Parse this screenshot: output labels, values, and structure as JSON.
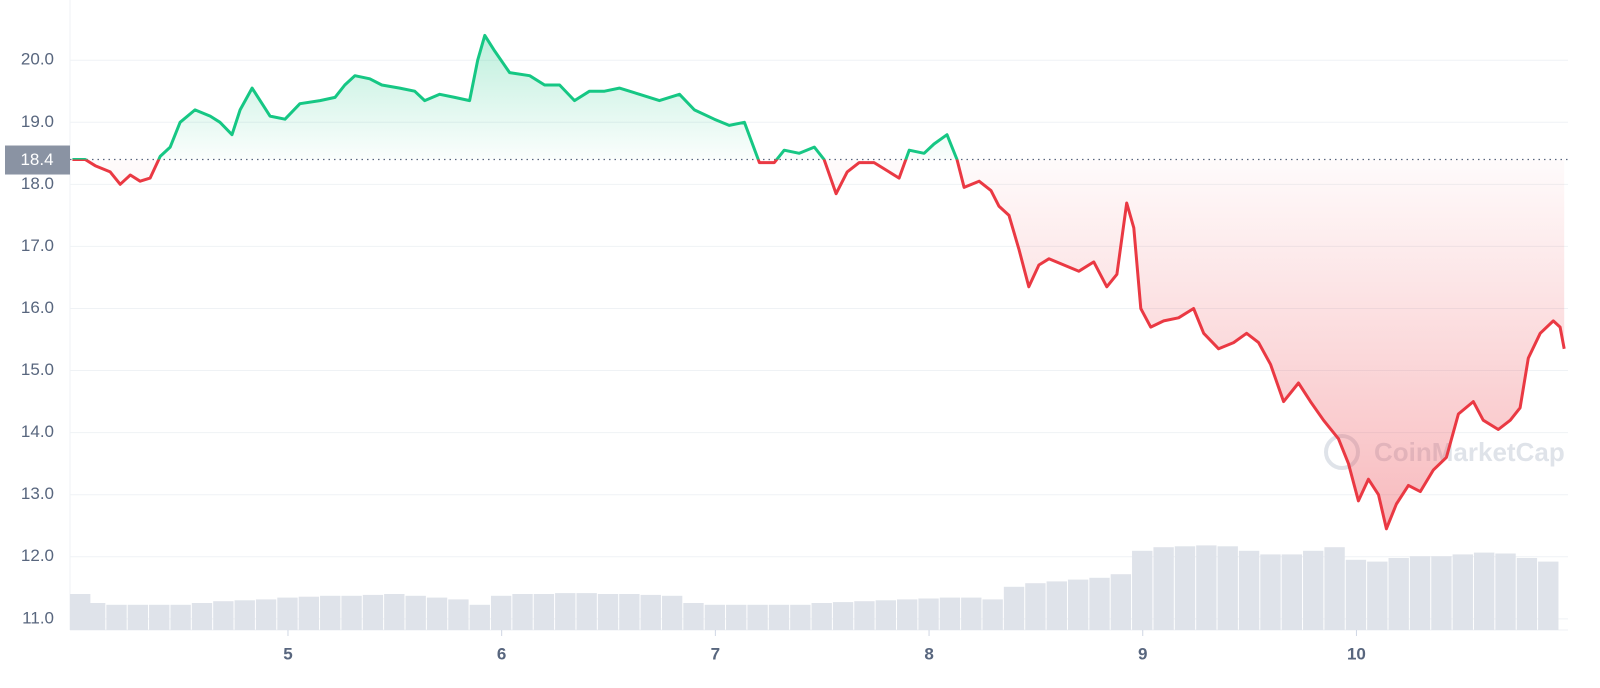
{
  "chart_data": {
    "type": "line",
    "baseline": 18.4,
    "watermark": "CoinMarketCap",
    "xlim": [
      3.98,
      10.99
    ],
    "ylim": [
      10.82,
      20.97
    ],
    "xticks": [
      5,
      6,
      7,
      8,
      9,
      10
    ],
    "yticks": [
      {
        "value": 11,
        "label": "11.0"
      },
      {
        "value": 12,
        "label": "12.0"
      },
      {
        "value": 13,
        "label": "13.0"
      },
      {
        "value": 14,
        "label": "14.0"
      },
      {
        "value": 15,
        "label": "15.0"
      },
      {
        "value": 16,
        "label": "16.0"
      },
      {
        "value": 17,
        "label": "17.0"
      },
      {
        "value": 18,
        "label": "18.0"
      },
      {
        "value": 19,
        "label": "19.0"
      },
      {
        "value": 20,
        "label": "20.0"
      }
    ],
    "grid": true,
    "up_color": "#16c784",
    "down_color": "#ea3943",
    "series": [
      {
        "x": [
          3.991,
          4.051,
          4.098,
          4.168,
          4.215,
          4.262,
          4.308,
          4.355,
          4.402,
          4.449,
          4.495,
          4.565,
          4.636,
          4.682,
          4.738,
          4.776,
          4.832,
          4.879,
          4.916,
          4.986,
          5.056,
          5.15,
          5.22,
          5.266,
          5.313,
          5.383,
          5.439,
          5.523,
          5.593,
          5.64,
          5.71,
          5.78,
          5.85,
          5.888,
          5.921,
          5.967,
          6.037,
          6.131,
          6.201,
          6.271,
          6.341,
          6.411,
          6.481,
          6.551,
          6.645,
          6.738,
          6.832,
          6.902,
          6.995,
          7.065,
          7.136,
          7.206,
          7.276,
          7.322,
          7.393,
          7.463,
          7.509,
          7.565,
          7.617,
          7.673,
          7.743,
          7.813,
          7.86,
          7.907,
          7.977,
          8.023,
          8.084,
          8.131,
          8.164,
          8.234,
          8.29,
          8.327,
          8.374,
          8.421,
          8.467,
          8.514,
          8.561,
          8.631,
          8.701,
          8.771,
          8.832,
          8.879,
          8.925,
          8.958,
          8.991,
          9.037,
          9.098,
          9.168,
          9.238,
          9.285,
          9.355,
          9.425,
          9.486,
          9.542,
          9.598,
          9.659,
          9.729,
          9.785,
          9.846,
          9.916,
          9.963,
          10.009,
          10.056,
          10.103,
          10.14,
          10.187,
          10.243,
          10.299,
          10.36,
          10.421,
          10.477,
          10.547,
          10.593,
          10.664,
          10.72,
          10.766,
          10.804,
          10.86,
          10.921,
          10.953,
          10.972
        ],
        "values": [
          18.4,
          18.4,
          18.3,
          18.2,
          18.0,
          18.15,
          18.05,
          18.1,
          18.45,
          18.6,
          19.0,
          19.2,
          19.1,
          19.0,
          18.8,
          19.2,
          19.55,
          19.3,
          19.1,
          19.05,
          19.3,
          19.35,
          19.4,
          19.6,
          19.75,
          19.7,
          19.6,
          19.55,
          19.5,
          19.35,
          19.45,
          19.4,
          19.35,
          20.0,
          20.4,
          20.15,
          19.8,
          19.75,
          19.6,
          19.6,
          19.35,
          19.5,
          19.5,
          19.55,
          19.45,
          19.35,
          19.45,
          19.2,
          19.05,
          18.95,
          19.0,
          18.35,
          18.35,
          18.55,
          18.5,
          18.6,
          18.4,
          17.85,
          18.2,
          18.35,
          18.35,
          18.2,
          18.1,
          18.55,
          18.5,
          18.65,
          18.8,
          18.4,
          17.95,
          18.05,
          17.9,
          17.65,
          17.5,
          16.95,
          16.35,
          16.7,
          16.8,
          16.7,
          16.6,
          16.75,
          16.35,
          16.55,
          17.7,
          17.3,
          16.0,
          15.7,
          15.8,
          15.85,
          16.0,
          15.6,
          15.35,
          15.45,
          15.6,
          15.45,
          15.1,
          14.5,
          14.8,
          14.5,
          14.2,
          13.9,
          13.5,
          12.9,
          13.25,
          13.0,
          12.45,
          12.85,
          13.15,
          13.05,
          13.4,
          13.6,
          14.3,
          14.5,
          14.2,
          14.05,
          14.2,
          14.4,
          15.2,
          15.6,
          15.8,
          15.7,
          15.35
        ]
      }
    ],
    "volume": {
      "color": "#dfe3ea",
      "ylim": [
        0,
        700
      ],
      "x": [
        4.0,
        4.1,
        4.2,
        4.3,
        4.4,
        4.5,
        4.6,
        4.7,
        4.8,
        4.9,
        5.0,
        5.1,
        5.2,
        5.3,
        5.4,
        5.5,
        5.6,
        5.7,
        5.8,
        5.9,
        6.0,
        6.1,
        6.2,
        6.3,
        6.4,
        6.5,
        6.6,
        6.7,
        6.8,
        6.9,
        7.0,
        7.1,
        7.2,
        7.3,
        7.4,
        7.5,
        7.6,
        7.7,
        7.8,
        7.9,
        8.0,
        8.1,
        8.2,
        8.3,
        8.4,
        8.5,
        8.6,
        8.7,
        8.8,
        8.9,
        9.0,
        9.1,
        9.2,
        9.3,
        9.4,
        9.5,
        9.6,
        9.7,
        9.8,
        9.9,
        10.0,
        10.1,
        10.2,
        10.3,
        10.4,
        10.5,
        10.6,
        10.7,
        10.8,
        10.9
      ],
      "values": [
        40,
        30,
        28,
        28,
        28,
        28,
        30,
        32,
        33,
        34,
        36,
        37,
        38,
        38,
        39,
        40,
        38,
        36,
        34,
        28,
        38,
        40,
        40,
        41,
        41,
        40,
        40,
        39,
        38,
        30,
        28,
        28,
        28,
        28,
        28,
        30,
        31,
        32,
        33,
        34,
        35,
        36,
        36,
        34,
        48,
        52,
        54,
        56,
        58,
        62,
        88,
        92,
        93,
        94,
        93,
        88,
        84,
        84,
        88,
        92,
        78,
        76,
        80,
        82,
        82,
        84,
        86,
        85,
        80,
        76
      ]
    }
  }
}
